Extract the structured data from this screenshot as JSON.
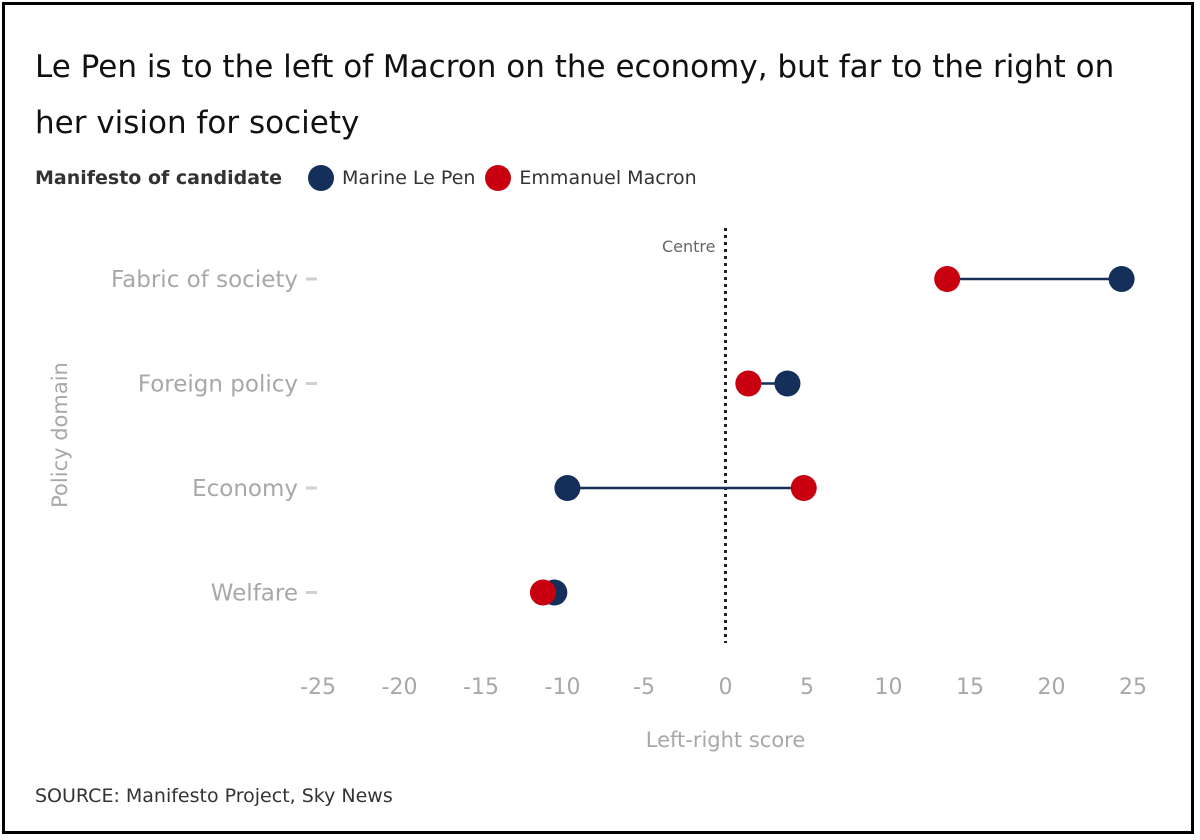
{
  "title": "Le Pen is to the left of Macron on the economy, but far to the right on her vision for society",
  "legend": {
    "heading": "Manifesto of candidate",
    "items": [
      {
        "label": "Marine Le Pen",
        "color": "#14305a"
      },
      {
        "label": "Emmanuel Macron",
        "color": "#c8000f"
      }
    ]
  },
  "source": "SOURCE: Manifesto Project, Sky News",
  "chart_data": {
    "type": "dumbbell",
    "title": "Le Pen is to the left of Macron on the economy, but far to the right on her vision for society",
    "xlabel": "Left-right score",
    "ylabel": "Policy domain",
    "xlim": [
      -25,
      25
    ],
    "xticks": [
      -25,
      -20,
      -15,
      -10,
      -5,
      0,
      5,
      10,
      15,
      20,
      25
    ],
    "categories": [
      "Fabric of society",
      "Foreign policy",
      "Economy",
      "Welfare"
    ],
    "series": [
      {
        "name": "Marine Le Pen",
        "color": "#14305a",
        "values": [
          24.3,
          3.8,
          -9.7,
          -10.5
        ]
      },
      {
        "name": "Emmanuel Macron",
        "color": "#c8000f",
        "values": [
          13.6,
          1.4,
          4.8,
          -11.2
        ]
      }
    ],
    "reference_line": {
      "x": 0,
      "label": "Centre"
    },
    "connector_color": "#14305a",
    "grid": false
  }
}
